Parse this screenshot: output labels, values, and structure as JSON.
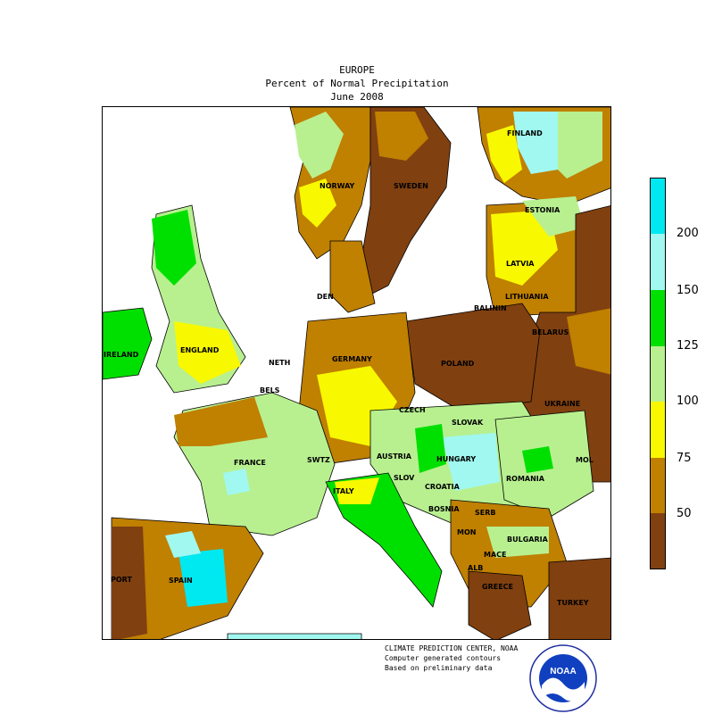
{
  "header": {
    "region": "EUROPE",
    "subtitle": "Percent of Normal Precipitation",
    "period": "June 2008"
  },
  "countries": [
    {
      "key": "finland",
      "label": "FINLAND"
    },
    {
      "key": "norway",
      "label": "NORWAY"
    },
    {
      "key": "sweden",
      "label": "SWEDEN"
    },
    {
      "key": "estonia",
      "label": "ESTONIA"
    },
    {
      "key": "latvia",
      "label": "LATVIA"
    },
    {
      "key": "lithuania",
      "label": "LITHUANIA"
    },
    {
      "key": "den",
      "label": "DEN"
    },
    {
      "key": "balinin",
      "label": "BALININ"
    },
    {
      "key": "belarus",
      "label": "BELARUS"
    },
    {
      "key": "ireland",
      "label": "IRELAND"
    },
    {
      "key": "england",
      "label": "ENGLAND"
    },
    {
      "key": "neth",
      "label": "NETH"
    },
    {
      "key": "germany",
      "label": "GERMANY"
    },
    {
      "key": "poland",
      "label": "POLAND"
    },
    {
      "key": "bels",
      "label": "BELS"
    },
    {
      "key": "ukraine",
      "label": "UKRAINE"
    },
    {
      "key": "czech",
      "label": "CZECH"
    },
    {
      "key": "slovak",
      "label": "SLOVAK"
    },
    {
      "key": "france",
      "label": "FRANCE"
    },
    {
      "key": "swtz",
      "label": "SWTZ"
    },
    {
      "key": "austria",
      "label": "AUSTRIA"
    },
    {
      "key": "hungary",
      "label": "HUNGARY"
    },
    {
      "key": "mol",
      "label": "MOL"
    },
    {
      "key": "romania",
      "label": "ROMANIA"
    },
    {
      "key": "italy",
      "label": "ITALY"
    },
    {
      "key": "slov",
      "label": "SLOV"
    },
    {
      "key": "croatia",
      "label": "CROATIA"
    },
    {
      "key": "bosnia",
      "label": "BOSNIA"
    },
    {
      "key": "serb",
      "label": "SERB"
    },
    {
      "key": "mon",
      "label": "MON"
    },
    {
      "key": "bulgaria",
      "label": "BULGARIA"
    },
    {
      "key": "mace",
      "label": "MACE"
    },
    {
      "key": "alb",
      "label": "ALB"
    },
    {
      "key": "port",
      "label": "PORT"
    },
    {
      "key": "spain",
      "label": "SPAIN"
    },
    {
      "key": "greece",
      "label": "GREECE"
    },
    {
      "key": "turkey",
      "label": "TURKEY"
    }
  ],
  "legend": {
    "colors": [
      "#00e8f0",
      "#a0f8f0",
      "#00e000",
      "#b8f090",
      "#f8f800",
      "#c08000",
      "#804010"
    ],
    "labels": [
      "200",
      "150",
      "125",
      "100",
      "75",
      "50"
    ]
  },
  "footer": {
    "line1": "CLIMATE PREDICTION CENTER, NOAA",
    "line2": "Computer generated contours",
    "line3": "Based on preliminary data"
  },
  "logo": {
    "text": "NOAA"
  }
}
